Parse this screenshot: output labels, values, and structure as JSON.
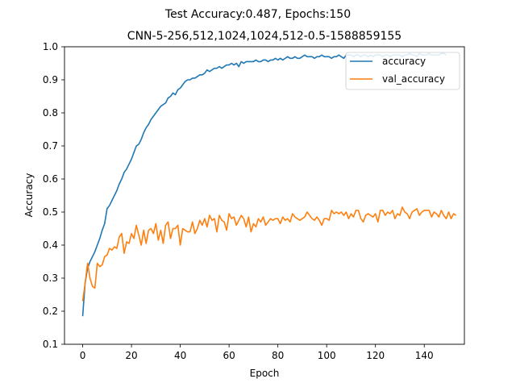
{
  "chart_data": {
    "type": "line",
    "title": "Test Accuracy:0.487, Epochs:150",
    "subtitle": "CNN-5-256,512,1024,1024,512-0.5-1588859155",
    "xlabel": "Epoch",
    "ylabel": "Accuracy",
    "xlim": [
      -7.45,
      156.45
    ],
    "ylim": [
      0.1,
      1.0
    ],
    "xticks": [
      0,
      20,
      40,
      60,
      80,
      100,
      120,
      140
    ],
    "yticks": [
      0.1,
      0.2,
      0.3,
      0.4,
      0.5,
      0.6,
      0.7,
      0.8,
      0.9,
      1.0
    ],
    "legend_position": "top-right",
    "grid": false,
    "series": [
      {
        "name": "accuracy",
        "color": "#1f77b4",
        "values": [
          0.185,
          0.285,
          0.33,
          0.35,
          0.365,
          0.38,
          0.4,
          0.42,
          0.445,
          0.465,
          0.51,
          0.52,
          0.535,
          0.55,
          0.565,
          0.585,
          0.6,
          0.62,
          0.63,
          0.645,
          0.66,
          0.68,
          0.7,
          0.705,
          0.72,
          0.74,
          0.755,
          0.765,
          0.78,
          0.79,
          0.8,
          0.81,
          0.82,
          0.825,
          0.83,
          0.845,
          0.85,
          0.86,
          0.855,
          0.87,
          0.875,
          0.885,
          0.895,
          0.9,
          0.9,
          0.905,
          0.905,
          0.91,
          0.915,
          0.915,
          0.92,
          0.93,
          0.925,
          0.93,
          0.935,
          0.935,
          0.94,
          0.935,
          0.94,
          0.945,
          0.945,
          0.95,
          0.945,
          0.95,
          0.94,
          0.955,
          0.95,
          0.955,
          0.955,
          0.955,
          0.955,
          0.96,
          0.955,
          0.955,
          0.96,
          0.96,
          0.955,
          0.96,
          0.96,
          0.965,
          0.96,
          0.965,
          0.96,
          0.965,
          0.97,
          0.965,
          0.965,
          0.97,
          0.965,
          0.965,
          0.97,
          0.975,
          0.97,
          0.97,
          0.97,
          0.965,
          0.97,
          0.97,
          0.975,
          0.97,
          0.97,
          0.97,
          0.965,
          0.97,
          0.97,
          0.975,
          0.97,
          0.965,
          0.975,
          0.975,
          0.975,
          0.97,
          0.975,
          0.975,
          0.97,
          0.975,
          0.975,
          0.97,
          0.975,
          0.97,
          0.975,
          0.975,
          0.975,
          0.97,
          0.975,
          0.975,
          0.97,
          0.975,
          0.975,
          0.975,
          0.975,
          0.97,
          0.975,
          0.975,
          0.98,
          0.975,
          0.975,
          0.97,
          0.98,
          0.975,
          0.975,
          0.975,
          0.98,
          0.975,
          0.975,
          0.975,
          0.975,
          0.98,
          0.98,
          0.975
        ]
      },
      {
        "name": "val_accuracy",
        "color": "#ff7f0e",
        "values": [
          0.23,
          0.285,
          0.345,
          0.3,
          0.275,
          0.27,
          0.345,
          0.335,
          0.34,
          0.365,
          0.37,
          0.39,
          0.385,
          0.395,
          0.39,
          0.425,
          0.435,
          0.375,
          0.41,
          0.405,
          0.435,
          0.42,
          0.46,
          0.43,
          0.4,
          0.445,
          0.405,
          0.445,
          0.45,
          0.435,
          0.465,
          0.415,
          0.445,
          0.405,
          0.46,
          0.47,
          0.42,
          0.45,
          0.45,
          0.46,
          0.4,
          0.45,
          0.445,
          0.44,
          0.44,
          0.47,
          0.435,
          0.45,
          0.475,
          0.46,
          0.48,
          0.455,
          0.49,
          0.475,
          0.48,
          0.44,
          0.49,
          0.475,
          0.47,
          0.445,
          0.495,
          0.48,
          0.485,
          0.46,
          0.475,
          0.49,
          0.48,
          0.455,
          0.485,
          0.44,
          0.465,
          0.455,
          0.48,
          0.47,
          0.485,
          0.46,
          0.47,
          0.48,
          0.475,
          0.48,
          0.48,
          0.465,
          0.485,
          0.475,
          0.48,
          0.47,
          0.495,
          0.485,
          0.48,
          0.475,
          0.48,
          0.485,
          0.5,
          0.49,
          0.48,
          0.475,
          0.485,
          0.475,
          0.46,
          0.48,
          0.48,
          0.475,
          0.505,
          0.495,
          0.5,
          0.495,
          0.5,
          0.49,
          0.5,
          0.48,
          0.495,
          0.485,
          0.505,
          0.505,
          0.48,
          0.47,
          0.49,
          0.495,
          0.49,
          0.485,
          0.495,
          0.47,
          0.505,
          0.505,
          0.49,
          0.5,
          0.495,
          0.505,
          0.48,
          0.495,
          0.49,
          0.515,
          0.5,
          0.495,
          0.48,
          0.5,
          0.505,
          0.51,
          0.49,
          0.5,
          0.505,
          0.505,
          0.505,
          0.485,
          0.5,
          0.495,
          0.485,
          0.505,
          0.49,
          0.48,
          0.5,
          0.48,
          0.495,
          0.49
        ]
      }
    ]
  }
}
